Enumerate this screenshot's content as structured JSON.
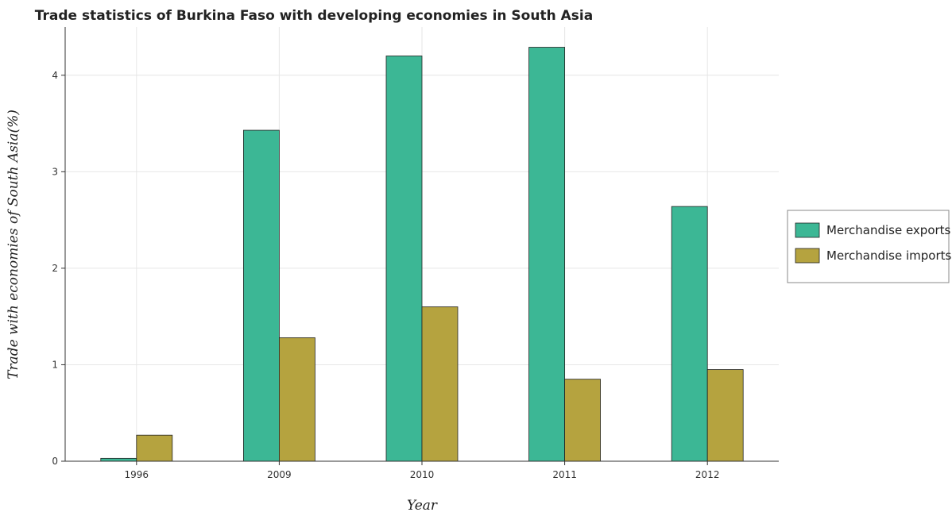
{
  "chart_data": {
    "type": "bar",
    "title": "Trade statistics of Burkina Faso with developing economies in South Asia",
    "xlabel": "Year",
    "ylabel": "Trade with economies of South Asia(%)",
    "categories": [
      "1996",
      "2009",
      "2010",
      "2011",
      "2012"
    ],
    "series": [
      {
        "name": "Merchandise exports",
        "color": "#3cb795",
        "values": [
          0.03,
          3.43,
          4.2,
          4.29,
          2.64
        ]
      },
      {
        "name": "Merchandise imports",
        "color": "#b5a33f",
        "values": [
          0.27,
          1.28,
          1.6,
          0.85,
          0.95
        ]
      }
    ],
    "ylim": [
      0,
      4.5
    ],
    "yticks": [
      "0",
      "1",
      "2",
      "3",
      "4"
    ],
    "grid": true,
    "legend_position": "right"
  }
}
